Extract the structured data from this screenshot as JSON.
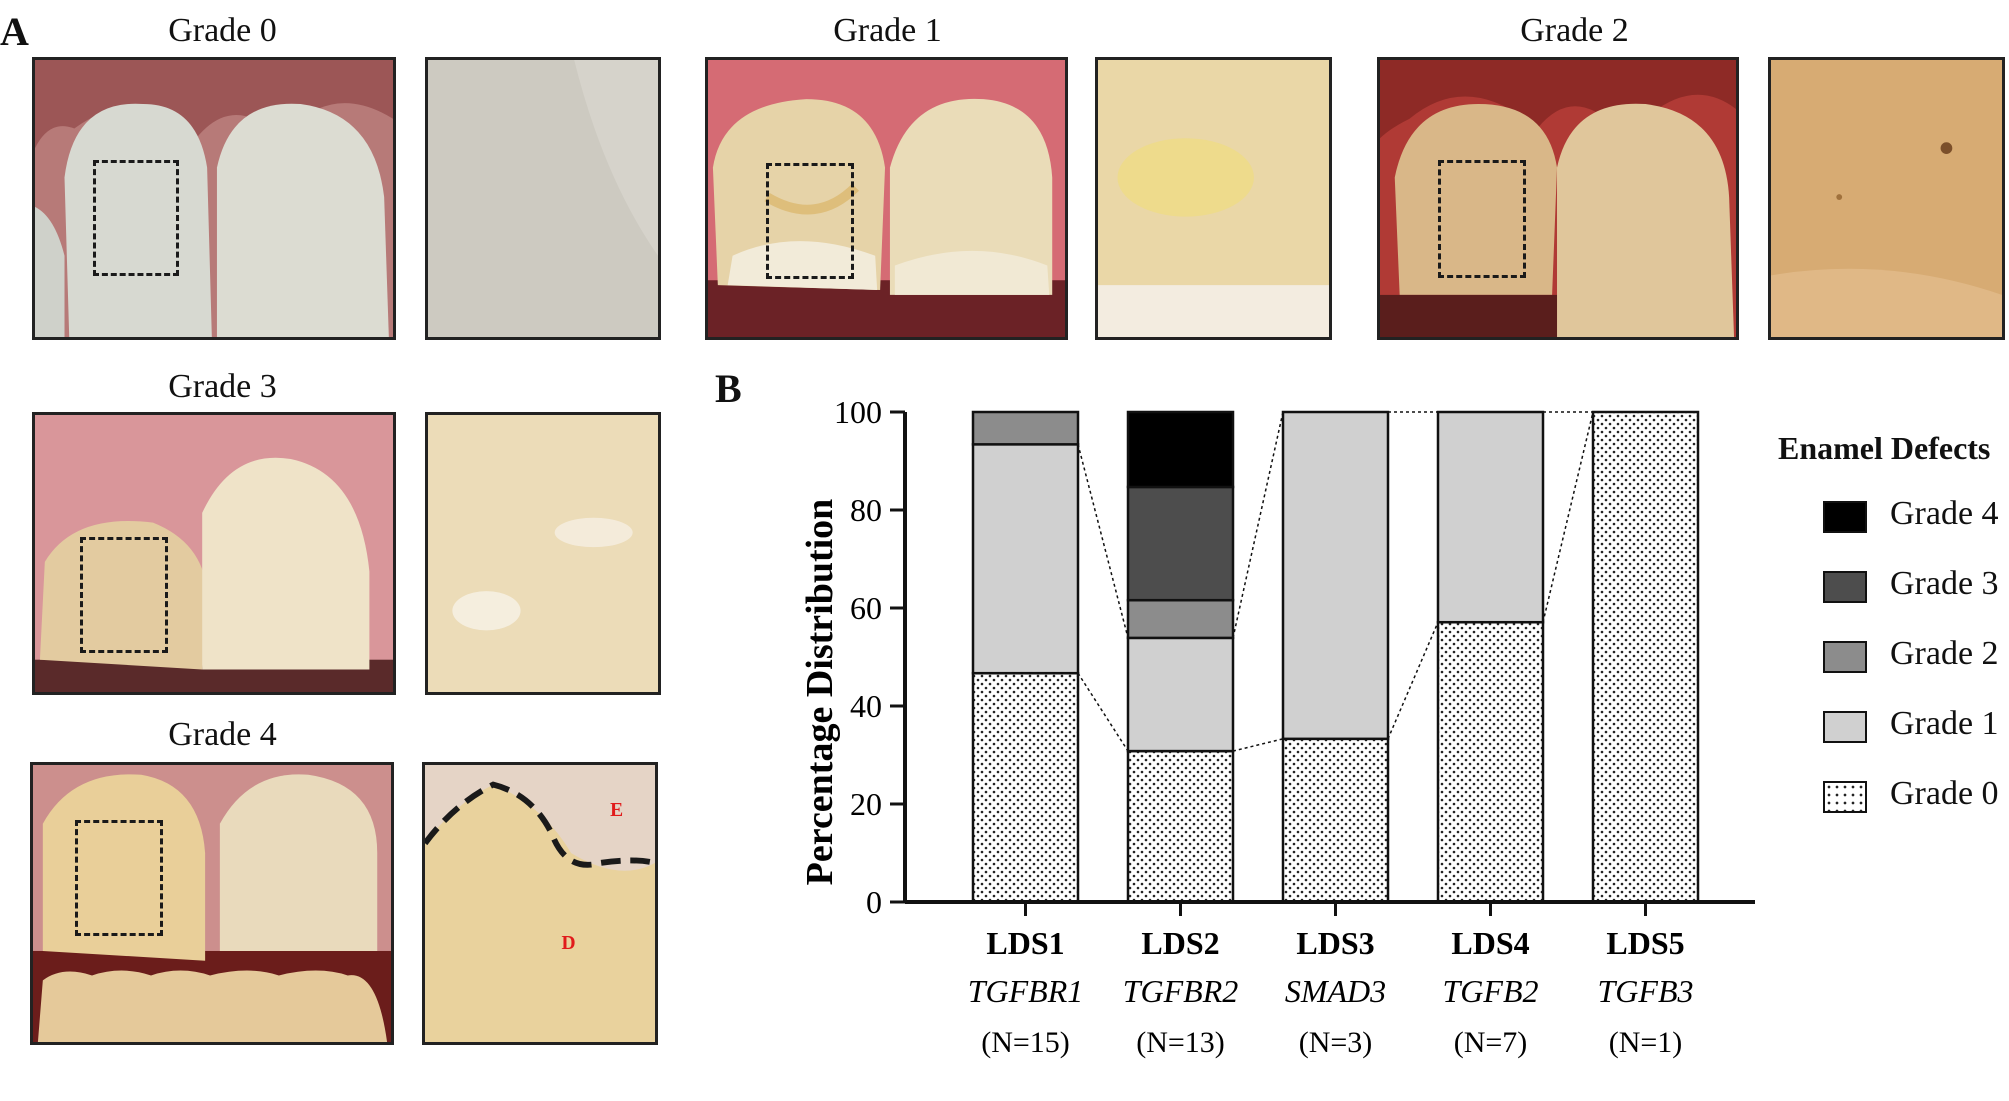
{
  "panels": {
    "a_label": "A",
    "b_label": "B"
  },
  "photo_grades": [
    {
      "id": "g0",
      "title": "Grade 0"
    },
    {
      "id": "g1",
      "title": "Grade 1"
    },
    {
      "id": "g2",
      "title": "Grade 2"
    },
    {
      "id": "g3",
      "title": "Grade 3"
    },
    {
      "id": "g4",
      "title": "Grade 4"
    }
  ],
  "photo_marks": {
    "enamel": "E",
    "dentin": "D"
  },
  "colors": {
    "grade4": "#000000",
    "grade3": "#4d4d4d",
    "grade2": "#8c8c8c",
    "grade1": "#d0d0d0",
    "grade0_bg": "#ffffff",
    "grade0_dot": "#222222",
    "mark_red": "#e11b1b"
  },
  "legend": {
    "title": "Enamel Defects",
    "items": [
      "Grade 4",
      "Grade 3",
      "Grade 2",
      "Grade 1",
      "Grade 0"
    ]
  },
  "chart_data": {
    "type": "bar",
    "stacked": true,
    "ylabel": "Percentage Distribution",
    "ylim": [
      0,
      100
    ],
    "yticks": [
      0,
      20,
      40,
      60,
      80,
      100
    ],
    "categories": [
      "LDS1",
      "LDS2",
      "LDS3",
      "LDS4",
      "LDS5"
    ],
    "genes": [
      "TGFBR1",
      "TGFBR2",
      "SMAD3",
      "TGFB2",
      "TGFB3"
    ],
    "counts": [
      "(N=15)",
      "(N=13)",
      "(N=3)",
      "(N=7)",
      "(N=1)"
    ],
    "series": [
      {
        "name": "Grade 0",
        "values": [
          46.7,
          30.8,
          33.3,
          57.1,
          100
        ]
      },
      {
        "name": "Grade 1",
        "values": [
          46.7,
          23.1,
          66.7,
          42.9,
          0
        ]
      },
      {
        "name": "Grade 2",
        "values": [
          6.6,
          7.7,
          0,
          0,
          0
        ]
      },
      {
        "name": "Grade 3",
        "values": [
          0,
          23.1,
          0,
          0,
          0
        ]
      },
      {
        "name": "Grade 4",
        "values": [
          0,
          15.3,
          0,
          0,
          0
        ]
      }
    ]
  }
}
